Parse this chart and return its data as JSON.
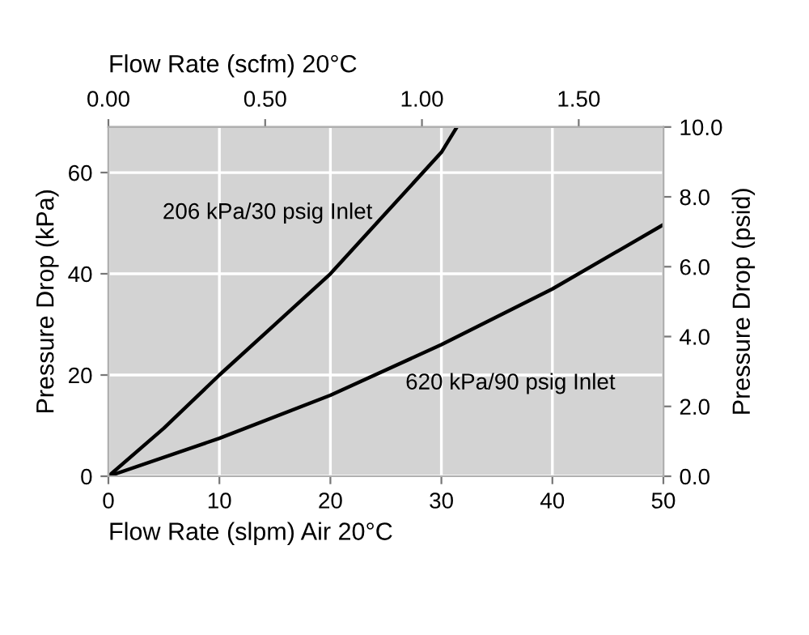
{
  "chart_data": {
    "type": "line",
    "xlabel": "Flow Rate (slpm) Air 20°C",
    "ylabel": "Pressure Drop (kPa)",
    "y2label": "Pressure Drop (psid)",
    "x2label": "Flow Rate (scfm) 20°C",
    "xlim": [
      0,
      50
    ],
    "xticks": [
      0,
      10,
      20,
      30,
      40,
      50
    ],
    "ylim": [
      0,
      69
    ],
    "yticks": [
      0,
      20,
      40,
      60
    ],
    "y2lim": [
      0,
      10
    ],
    "y2ticks": [
      {
        "value": 0,
        "label": "0.0"
      },
      {
        "value": 2,
        "label": "2.0"
      },
      {
        "value": 4,
        "label": "4.0"
      },
      {
        "value": 6,
        "label": "6.0"
      },
      {
        "value": 8,
        "label": "8.0"
      },
      {
        "value": 10,
        "label": "10.0"
      }
    ],
    "x2lim": [
      0,
      1.77
    ],
    "x2ticks": [
      {
        "value": 0,
        "label": "0.00"
      },
      {
        "value": 0.5,
        "label": "0.50"
      },
      {
        "value": 1,
        "label": "1.00"
      },
      {
        "value": 1.5,
        "label": "1.50"
      }
    ],
    "grid": true,
    "marker": "none",
    "line_style": "solid",
    "legend": false,
    "series": [
      {
        "name": "206 kPa/30 psig Inlet",
        "color": "#000000",
        "x": [
          0,
          5,
          10,
          15,
          20,
          25,
          30,
          31.4
        ],
        "values": [
          0,
          9.5,
          20,
          30,
          40,
          52,
          64,
          69
        ]
      },
      {
        "name": "620 kPa/90 psig Inlet",
        "color": "#000000",
        "x": [
          0,
          10,
          20,
          30,
          40,
          50
        ],
        "values": [
          0,
          7.5,
          16,
          26,
          37,
          49.7
        ]
      }
    ]
  }
}
